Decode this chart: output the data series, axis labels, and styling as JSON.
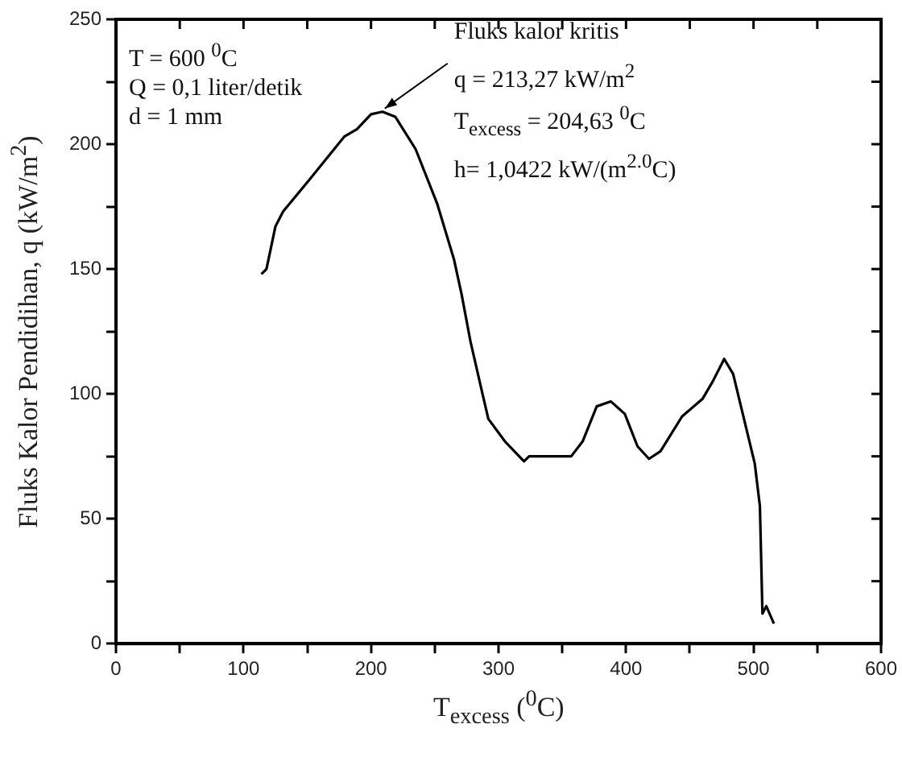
{
  "chart_data": {
    "type": "line",
    "xlabel": "T$_{excess}$ ($^{0}$C)",
    "ylabel": "Fluks Kalor Pendidihan, q (kW/m$^{2}$)",
    "xlim": [
      0,
      600
    ],
    "xticks": [
      0,
      {
        "value": 50,
        "label": null
      },
      100,
      {
        "value": 150,
        "label": null
      },
      200,
      {
        "value": 250,
        "label": null
      },
      300,
      {
        "value": 350,
        "label": null
      },
      400,
      {
        "value": 450,
        "label": null
      },
      500,
      {
        "value": 550,
        "label": null
      },
      600
    ],
    "ylim": [
      0,
      250
    ],
    "yticks": [
      0,
      {
        "value": 25,
        "label": null
      },
      50,
      {
        "value": 75,
        "label": null
      },
      100,
      {
        "value": 125,
        "label": null
      },
      150,
      {
        "value": 175,
        "label": null
      },
      200,
      {
        "value": 225,
        "label": null
      },
      250
    ],
    "grid": false,
    "legend": false,
    "marker": "none",
    "line_style": "solid",
    "series": [
      {
        "color": "#000000",
        "x": [
          114,
          118,
          125,
          131,
          152,
          179,
          189,
          200,
          209,
          219,
          235,
          252,
          265,
          271,
          278,
          287,
          292,
          305,
          320,
          324,
          357,
          366,
          377,
          388,
          399,
          409,
          418,
          427,
          444,
          460,
          468,
          477,
          484,
          501,
          505,
          507,
          510,
          516
        ],
        "values": [
          148,
          150,
          167,
          173,
          186,
          203,
          206,
          212,
          213,
          211,
          198,
          176,
          154,
          140,
          121,
          101,
          90,
          81,
          73,
          75,
          75,
          81,
          95,
          97,
          92,
          79,
          74,
          77,
          91,
          98,
          105,
          114,
          108,
          72,
          55,
          12,
          15,
          8
        ]
      }
    ],
    "annotations": [
      "T = 600 $^{0}$C",
      "Q = 0,1 liter/detik",
      "d  = 1 mm",
      {
        "text": "Fluks kalor kritis",
        "x": 207,
        "y": 213
      },
      "q = 213,27 kW/m$^{2}$",
      "T$_{excess}$ = 204,63 $^{0}$C",
      "h= 1,0422 kW/(m$^{2.0}$C)"
    ]
  }
}
